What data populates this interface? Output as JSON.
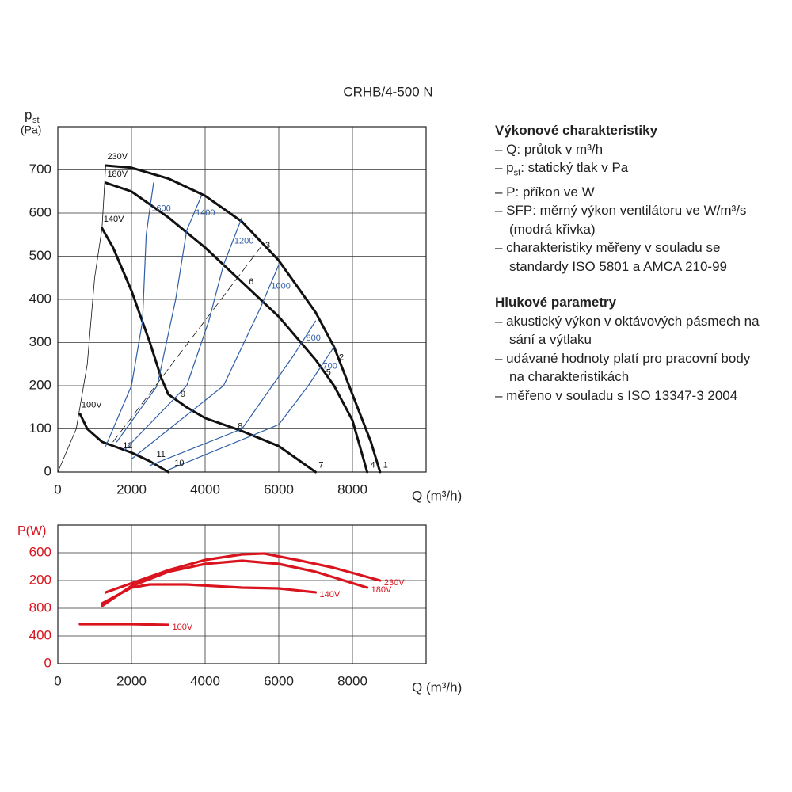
{
  "title": "CRHB/4-500 N",
  "chart_data": [
    {
      "type": "line",
      "x_label": "Q (m³/h)",
      "y_label_main": "p",
      "y_label_sub": "st",
      "y_label_unit": "(Pa)",
      "xlim": [
        0,
        10000
      ],
      "xticks": [
        0,
        2000,
        4000,
        6000,
        8000
      ],
      "ylim": [
        0,
        800
      ],
      "yticks": [
        0,
        100,
        200,
        300,
        400,
        500,
        600,
        700
      ],
      "grid": true,
      "series": [
        {
          "name": "230V",
          "color": "#111111",
          "weight": "bold",
          "x": [
            1300,
            2000,
            3000,
            4000,
            5000,
            6000,
            7000,
            7500,
            8000,
            8500,
            8750
          ],
          "values": [
            710,
            705,
            680,
            640,
            580,
            490,
            370,
            290,
            180,
            70,
            0
          ]
        },
        {
          "name": "180V",
          "color": "#111111",
          "weight": "bold",
          "x": [
            1300,
            2000,
            3000,
            4000,
            5000,
            6000,
            7000,
            7500,
            8000,
            8400
          ],
          "values": [
            670,
            650,
            590,
            520,
            440,
            360,
            260,
            200,
            120,
            0
          ]
        },
        {
          "name": "140V",
          "color": "#111111",
          "weight": "bold",
          "x": [
            1200,
            1500,
            2000,
            2500,
            2800,
            3000,
            3500,
            4000,
            5000,
            6000,
            6500,
            7000
          ],
          "values": [
            565,
            520,
            420,
            300,
            220,
            180,
            150,
            125,
            95,
            60,
            30,
            0
          ]
        },
        {
          "name": "100V",
          "color": "#111111",
          "weight": "bold",
          "x": [
            600,
            800,
            1200,
            2000,
            2500,
            3000
          ],
          "values": [
            135,
            100,
            70,
            45,
            25,
            0
          ]
        },
        {
          "color": "#111111",
          "weight": "thin",
          "x": [
            0,
            500,
            800,
            1000,
            1200,
            1300
          ],
          "values": [
            0,
            100,
            250,
            450,
            565,
            710
          ]
        },
        {
          "color": "#111111",
          "weight": "thin",
          "dashed": true,
          "x": [
            1500,
            5500
          ],
          "values": [
            70,
            520
          ]
        },
        {
          "name": "1600",
          "color": "#2f5fa8",
          "weight": "thin",
          "x": [
            1300,
            2000,
            2300,
            2400,
            2600
          ],
          "values": [
            60,
            200,
            350,
            550,
            670
          ]
        },
        {
          "name": "1400",
          "color": "#2f5fa8",
          "weight": "thin",
          "x": [
            1600,
            2700,
            3200,
            3500,
            3900
          ],
          "values": [
            70,
            200,
            400,
            560,
            640
          ]
        },
        {
          "name": "1200",
          "color": "#2f5fa8",
          "weight": "thin",
          "x": [
            1800,
            3500,
            4100,
            4500,
            5000
          ],
          "values": [
            50,
            200,
            350,
            480,
            590
          ]
        },
        {
          "name": "1000",
          "color": "#2f5fa8",
          "weight": "thin",
          "x": [
            2000,
            4500,
            5500,
            6000
          ],
          "values": [
            30,
            200,
            380,
            480
          ]
        },
        {
          "name": "800",
          "color": "#2f5fa8",
          "weight": "thin",
          "x": [
            2500,
            5000,
            6400,
            7000
          ],
          "values": [
            15,
            100,
            270,
            350
          ]
        },
        {
          "name": "700",
          "color": "#2f5fa8",
          "weight": "thin",
          "x": [
            3000,
            6000,
            6800,
            7500
          ],
          "values": [
            5,
            110,
            200,
            290
          ]
        }
      ],
      "annotations": [
        {
          "text": "1",
          "x": 8900,
          "y": 15
        },
        {
          "text": "2",
          "x": 7700,
          "y": 265
        },
        {
          "text": "3",
          "x": 5700,
          "y": 525
        },
        {
          "text": "4",
          "x": 8550,
          "y": 15
        },
        {
          "text": "5",
          "x": 7350,
          "y": 230
        },
        {
          "text": "6",
          "x": 5250,
          "y": 440
        },
        {
          "text": "7",
          "x": 7150,
          "y": 15
        },
        {
          "text": "8",
          "x": 4950,
          "y": 105
        },
        {
          "text": "9",
          "x": 3400,
          "y": 180
        },
        {
          "text": "10",
          "x": 3300,
          "y": 20
        },
        {
          "text": "11",
          "x": 2800,
          "y": 40
        },
        {
          "text": "12",
          "x": 1900,
          "y": 60
        }
      ]
    },
    {
      "type": "line",
      "x_label": "Q (m³/h)",
      "y_label_main": "P(W)",
      "xlim": [
        0,
        10000
      ],
      "xticks": [
        0,
        2000,
        4000,
        6000,
        8000
      ],
      "ylim": [
        0,
        2000
      ],
      "yticks": [
        0,
        400,
        800,
        {
          "value": 1200,
          "label": "200"
        },
        {
          "value": 1600,
          "label": "600"
        }
      ],
      "grid": true,
      "series": [
        {
          "name": "230V",
          "color": "#d9141e",
          "weight": "bold",
          "x": [
            1300,
            3000,
            4000,
            5000,
            5600,
            6500,
            7500,
            8750
          ],
          "values": [
            1029,
            1349,
            1497,
            1577,
            1589,
            1497,
            1383,
            1200
          ]
        },
        {
          "name": "180V",
          "color": "#d9141e",
          "weight": "bold",
          "x": [
            1200,
            2000,
            3000,
            4000,
            5000,
            6000,
            7000,
            8400
          ],
          "values": [
            834,
            1120,
            1326,
            1440,
            1486,
            1440,
            1326,
            1097
          ]
        },
        {
          "name": "140V",
          "color": "#d9141e",
          "weight": "bold",
          "x": [
            1200,
            2000,
            2500,
            3500,
            5000,
            6000,
            7000
          ],
          "values": [
            869,
            1097,
            1143,
            1143,
            1097,
            1086,
            1029
          ]
        },
        {
          "name": "100V",
          "color": "#d9141e",
          "weight": "bold",
          "x": [
            600,
            2000,
            3000
          ],
          "values": [
            571,
            571,
            560
          ]
        }
      ]
    }
  ],
  "notes": {
    "heading1": "Výkonové charakteristiky",
    "items1": [
      [
        "– Q: průtok v m³/h"
      ],
      [
        "– p",
        "st",
        ": statický tlak v Pa"
      ],
      [
        "– P: příkon ve W"
      ],
      [
        "– SFP: měrný výkon ventilátoru ve W/m³/s (modrá křivka)"
      ],
      [
        "– charakteristiky měřeny v souladu se standardy ISO 5801 a AMCA 210-99"
      ]
    ],
    "heading2": "Hlukové parametry",
    "items2": [
      [
        "– akustický výkon v oktávových pásmech na sání a výtlaku"
      ],
      [
        "– udávané hodnoty platí pro pracovní body na charakteristikách"
      ],
      [
        "– měřeno v souladu s ISO 13347-3 2004"
      ]
    ]
  }
}
